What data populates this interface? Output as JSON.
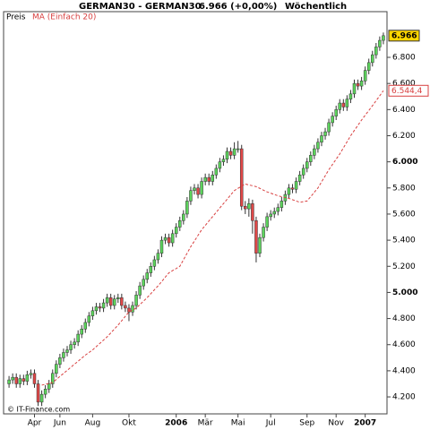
{
  "chart_data": {
    "type": "candlestick",
    "title": "GERMAN30 - GERMAN30",
    "quote": "6.966 (+0,00%)",
    "period": "Wöchentlich",
    "footer": "© IT-Finance.com",
    "xlim": [
      -1.5,
      104
    ],
    "xticks": [
      {
        "value": 7,
        "label": "Apr"
      },
      {
        "value": 14,
        "label": "Jun"
      },
      {
        "value": 23,
        "label": "Aug"
      },
      {
        "value": 33,
        "label": "Okt"
      },
      {
        "value": 46,
        "label": "2006"
      },
      {
        "value": 54,
        "label": "Mär"
      },
      {
        "value": 63,
        "label": "Mai"
      },
      {
        "value": 72,
        "label": "Jul"
      },
      {
        "value": 82,
        "label": "Sep"
      },
      {
        "value": 90,
        "label": "Nov"
      },
      {
        "value": 98,
        "label": "2007"
      }
    ],
    "ylim": [
      4070,
      7150
    ],
    "yticks": [
      {
        "value": 4200,
        "label": "4.200"
      },
      {
        "value": 4400,
        "label": "4.400"
      },
      {
        "value": 4600,
        "label": "4.600"
      },
      {
        "value": 4800,
        "label": "4.800"
      },
      {
        "value": 5000,
        "label": "5.000"
      },
      {
        "value": 5200,
        "label": "5.200"
      },
      {
        "value": 5400,
        "label": "5.400"
      },
      {
        "value": 5600,
        "label": "5.600"
      },
      {
        "value": 5800,
        "label": "5.800"
      },
      {
        "value": 6000,
        "label": "6.000"
      },
      {
        "value": 6200,
        "label": "6.200"
      },
      {
        "value": 6400,
        "label": "6.400"
      },
      {
        "value": 6600,
        "label": "6.600"
      },
      {
        "value": 6800,
        "label": "6.800"
      }
    ],
    "series": [
      {
        "name": "Preis",
        "up_color": "#5cd45c",
        "down_color": "#e04848",
        "last_label": "6.966",
        "open": [
          4300,
          4330,
          4350,
          4300,
          4340,
          4320,
          4370,
          4380,
          4300,
          4160,
          4220,
          4260,
          4300,
          4380,
          4450,
          4500,
          4540,
          4560,
          4600,
          4620,
          4680,
          4720,
          4770,
          4820,
          4860,
          4890,
          4880,
          4920,
          4960,
          4900,
          4950,
          4960,
          4900,
          4880,
          4850,
          4900,
          4980,
          5050,
          5100,
          5150,
          5200,
          5250,
          5300,
          5400,
          5420,
          5380,
          5450,
          5500,
          5550,
          5600,
          5700,
          5780,
          5800,
          5750,
          5850,
          5880,
          5850,
          5900,
          5950,
          6000,
          6020,
          6080,
          6050,
          6100,
          6100,
          5660,
          5640,
          5680,
          5550,
          5300,
          5420,
          5500,
          5580,
          5600,
          5620,
          5650,
          5700,
          5750,
          5800,
          5790,
          5850,
          5900,
          5950,
          6000,
          6050,
          6100,
          6150,
          6200,
          6230,
          6300,
          6350,
          6400,
          6450,
          6420,
          6480,
          6520,
          6600,
          6580,
          6620,
          6700,
          6760,
          6820,
          6880,
          6930
        ],
        "high": [
          4360,
          4380,
          4380,
          4370,
          4370,
          4400,
          4410,
          4410,
          4330,
          4250,
          4290,
          4330,
          4410,
          4480,
          4530,
          4570,
          4590,
          4630,
          4650,
          4710,
          4750,
          4800,
          4850,
          4890,
          4920,
          4920,
          4950,
          4990,
          4990,
          4980,
          4990,
          4990,
          4930,
          4910,
          4930,
          5010,
          5080,
          5130,
          5180,
          5230,
          5280,
          5330,
          5430,
          5450,
          5450,
          5480,
          5530,
          5580,
          5630,
          5730,
          5810,
          5830,
          5830,
          5880,
          5910,
          5910,
          5930,
          5980,
          6030,
          6050,
          6110,
          6110,
          6150,
          6160,
          6130,
          5700,
          5720,
          5710,
          5580,
          5450,
          5530,
          5610,
          5630,
          5650,
          5680,
          5730,
          5780,
          5830,
          5830,
          5880,
          5930,
          5980,
          6030,
          6080,
          6130,
          6180,
          6230,
          6260,
          6330,
          6380,
          6430,
          6480,
          6480,
          6510,
          6550,
          6630,
          6630,
          6650,
          6730,
          6790,
          6850,
          6910,
          6960,
          6990
        ],
        "low": [
          4270,
          4300,
          4270,
          4270,
          4290,
          4290,
          4340,
          4270,
          4130,
          4130,
          4190,
          4230,
          4270,
          4350,
          4420,
          4470,
          4510,
          4530,
          4570,
          4590,
          4650,
          4690,
          4740,
          4790,
          4830,
          4850,
          4850,
          4890,
          4870,
          4870,
          4920,
          4870,
          4850,
          4780,
          4820,
          4870,
          4950,
          5020,
          5070,
          5120,
          5170,
          5220,
          5270,
          5370,
          5350,
          5350,
          5420,
          5470,
          5520,
          5570,
          5670,
          5750,
          5720,
          5720,
          5820,
          5820,
          5820,
          5870,
          5920,
          5970,
          5990,
          6020,
          6020,
          6070,
          5630,
          5600,
          5580,
          5450,
          5230,
          5270,
          5390,
          5470,
          5550,
          5570,
          5590,
          5620,
          5670,
          5720,
          5760,
          5760,
          5820,
          5870,
          5920,
          5970,
          6020,
          6070,
          6120,
          6170,
          6200,
          6270,
          6320,
          6370,
          6390,
          6390,
          6450,
          6490,
          6550,
          6550,
          6590,
          6670,
          6730,
          6790,
          6850,
          6900
        ],
        "close": [
          4330,
          4350,
          4300,
          4340,
          4320,
          4370,
          4380,
          4300,
          4160,
          4220,
          4260,
          4300,
          4380,
          4450,
          4500,
          4540,
          4560,
          4600,
          4620,
          4680,
          4720,
          4770,
          4820,
          4860,
          4890,
          4880,
          4920,
          4960,
          4900,
          4950,
          4960,
          4900,
          4880,
          4850,
          4900,
          4980,
          5050,
          5100,
          5150,
          5200,
          5250,
          5300,
          5400,
          5420,
          5380,
          5450,
          5500,
          5550,
          5600,
          5700,
          5780,
          5800,
          5750,
          5850,
          5880,
          5850,
          5900,
          5950,
          6000,
          6020,
          6080,
          6050,
          6100,
          6100,
          5660,
          5640,
          5680,
          5550,
          5300,
          5420,
          5500,
          5580,
          5600,
          5620,
          5650,
          5700,
          5750,
          5800,
          5790,
          5850,
          5900,
          5950,
          6000,
          6050,
          6100,
          6150,
          6200,
          6230,
          6300,
          6350,
          6400,
          6450,
          6420,
          6480,
          6520,
          6600,
          6580,
          6620,
          6700,
          6760,
          6820,
          6880,
          6930,
          6966
        ]
      },
      {
        "name": "MA (Einfach 20)",
        "type": "line",
        "color": "#d84040",
        "last_label": "6.544,4",
        "values": [
          null,
          null,
          null,
          null,
          null,
          null,
          null,
          null,
          null,
          4290,
          4297,
          4303,
          4310,
          4333,
          4357,
          4380,
          4403,
          4427,
          4450,
          4473,
          4497,
          4520,
          4540,
          4560,
          4585,
          4610,
          4635,
          4660,
          4690,
          4720,
          4750,
          4783,
          4817,
          4850,
          4865,
          4880,
          4907,
          4933,
          4960,
          4990,
          5020,
          5050,
          5083,
          5117,
          5150,
          5167,
          5183,
          5200,
          5250,
          5300,
          5350,
          5393,
          5437,
          5480,
          5513,
          5547,
          5580,
          5613,
          5647,
          5680,
          5713,
          5747,
          5780,
          5797,
          5813,
          5830,
          5823,
          5817,
          5810,
          5797,
          5783,
          5770,
          5760,
          5750,
          5740,
          5733,
          5727,
          5720,
          5710,
          5700,
          5690,
          5695,
          5700,
          5733,
          5767,
          5800,
          5847,
          5893,
          5940,
          5980,
          6020,
          6060,
          6107,
          6153,
          6200,
          6240,
          6280,
          6320,
          6357,
          6393,
          6430,
          6468,
          6506,
          6544.4
        ]
      }
    ]
  }
}
